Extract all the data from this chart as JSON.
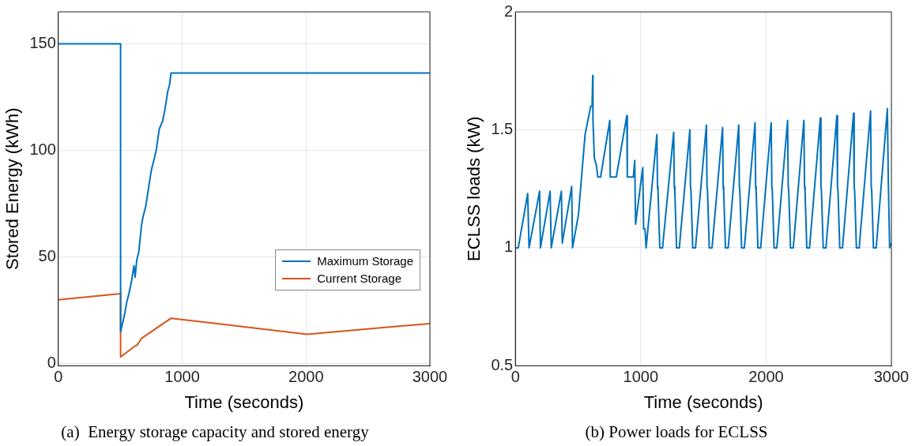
{
  "chart_data": [
    {
      "type": "line",
      "title": "(a)  Energy storage capacity and stored energy",
      "xlabel": "Time (seconds)",
      "ylabel": "Stored Energy (kWh)",
      "xlim": [
        0,
        3000
      ],
      "xticks": [
        0,
        1000,
        2000,
        3000
      ],
      "ylim": [
        -1,
        165
      ],
      "yticks": [
        0,
        50,
        100,
        150
      ],
      "grid": true,
      "legend": "bottom right",
      "series": [
        {
          "name": "Maximum Storage",
          "color": "#0072bd",
          "x": [
            0,
            503,
            503,
            521,
            537,
            552,
            571,
            589,
            611,
            620,
            634,
            650,
            672,
            684,
            706,
            729,
            752,
            774,
            792,
            815,
            842,
            860,
            883,
            899,
            910,
            3000
          ],
          "values": [
            150,
            150,
            15,
            19.4,
            23.7,
            28.7,
            33,
            38,
            46,
            40.6,
            48.8,
            52.5,
            65,
            68.8,
            73.8,
            82.5,
            91,
            96,
            100.6,
            110,
            113.8,
            118.8,
            127.5,
            131,
            136.3,
            136.3
          ]
        },
        {
          "name": "Current Storage",
          "color": "#d95319",
          "x": [
            0,
            503,
            503,
            616,
            638,
            672,
            910,
            2008,
            3000
          ],
          "values": [
            30,
            32.8,
            3.1,
            8.1,
            8.8,
            11.9,
            21.3,
            13.8,
            18.8
          ]
        }
      ]
    },
    {
      "type": "line",
      "title": "(b) Power loads for ECLSS",
      "xlabel": "Time (seconds)",
      "ylabel": "ECLSS loads (kW)",
      "xlim": [
        0,
        3000
      ],
      "xticks": [
        0,
        1000,
        2000,
        3000
      ],
      "ylim": [
        0.5,
        2
      ],
      "yticks": [
        0.5,
        1,
        1.5,
        2
      ],
      "grid": true,
      "series": [
        {
          "color": "#0072bd",
          "x": [
            0,
            23,
            98,
            109,
            193,
            200,
            277,
            286,
            367,
            374,
            449,
            456,
            503,
            556,
            601,
            612,
            617,
            619,
            630,
            646,
            658,
            680,
            753,
            757,
            805,
            889,
            893,
            941,
            952,
            959,
            1016,
            1023,
            1034,
            1043,
            1129,
            1134,
            1138,
            1152,
            1174,
            1263,
            1268,
            1272,
            1286,
            1308,
            1392,
            1397,
            1401,
            1415,
            1437,
            1524,
            1529,
            1533,
            1547,
            1569,
            1653,
            1658,
            1662,
            1676,
            1698,
            1782,
            1787,
            1791,
            1805,
            1827,
            1912,
            1917,
            1921,
            1935,
            1957,
            2041,
            2046,
            2050,
            2064,
            2086,
            2172,
            2177,
            2181,
            2195,
            2217,
            2302,
            2307,
            2311,
            2325,
            2347,
            2433,
            2438,
            2442,
            2456,
            2478,
            2565,
            2570,
            2574,
            2588,
            2610,
            2698,
            2703,
            2707,
            2721,
            2743,
            2834,
            2839,
            2843,
            2857,
            2879,
            2968,
            2975,
            2986,
            3000
          ],
          "values": [
            1,
            1,
            1.23,
            1,
            1.24,
            1,
            1.24,
            1,
            1.24,
            1.02,
            1.26,
            1,
            1.14,
            1.48,
            1.6,
            1.6,
            1.73,
            1.54,
            1.38,
            1.35,
            1.3,
            1.3,
            1.54,
            1.3,
            1.3,
            1.56,
            1.3,
            1.3,
            1.37,
            1.1,
            1.34,
            1.08,
            1.08,
            1,
            1.48,
            1.26,
            1.24,
            1,
            1,
            1.49,
            1.26,
            1.24,
            1,
            1,
            1.5,
            1.26,
            1.24,
            1,
            1,
            1.52,
            1.26,
            1.24,
            1,
            1,
            1.51,
            1.26,
            1.24,
            1,
            1,
            1.52,
            1.26,
            1.24,
            1,
            1,
            1.53,
            1.26,
            1.24,
            1,
            1,
            1.53,
            1.26,
            1.24,
            1,
            1,
            1.54,
            1.26,
            1.24,
            1,
            1,
            1.54,
            1.26,
            1.24,
            1,
            1,
            1.55,
            1.26,
            1.24,
            1,
            1,
            1.56,
            1.26,
            1.24,
            1,
            1,
            1.57,
            1.26,
            1.24,
            1,
            1,
            1.58,
            1.26,
            1.24,
            1,
            1,
            1.59,
            1.3,
            1,
            1.02
          ]
        }
      ]
    }
  ]
}
